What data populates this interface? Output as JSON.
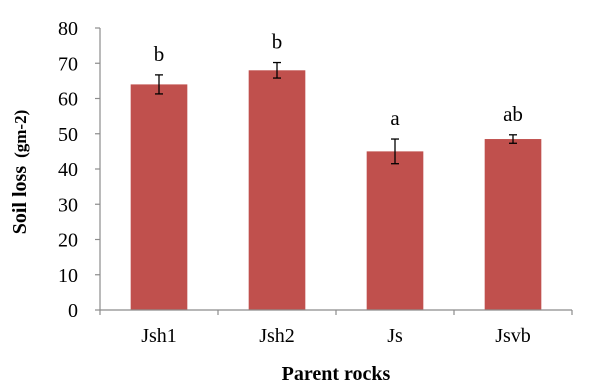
{
  "chart_data": {
    "type": "bar",
    "title": "",
    "xlabel": "Parent rocks",
    "ylabel": {
      "main": "Soil loss",
      "unit": "(gm-2)"
    },
    "categories": [
      "Jsh1",
      "Jsh2",
      "Js",
      "Jsvb"
    ],
    "series": [
      {
        "values": [
          64,
          68,
          45,
          48.5
        ],
        "errors": [
          2.7,
          2.2,
          3.5,
          1.2
        ],
        "labels": [
          "b",
          "b",
          "a",
          "ab"
        ],
        "color": "#c0504d"
      }
    ],
    "ylim": [
      0,
      80
    ],
    "yticks": [
      0,
      10,
      20,
      30,
      40,
      50,
      60,
      70,
      80
    ],
    "grid": false,
    "legend": "none"
  }
}
